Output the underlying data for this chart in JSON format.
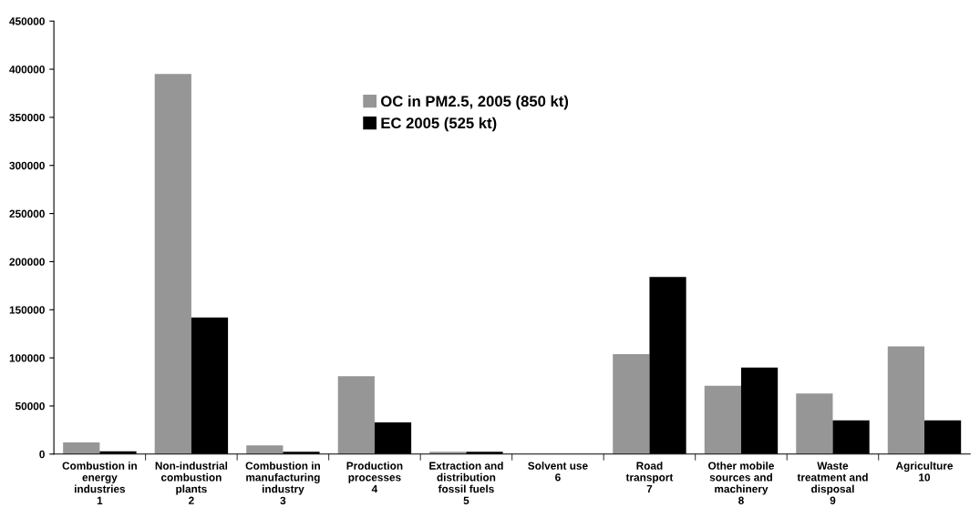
{
  "chart_data": {
    "type": "bar",
    "categories": [
      "Combustion in\nenergy\nindustries\n1",
      "Non-industrial\ncombustion\nplants\n2",
      "Combustion in\nmanufacturing\nindustry\n3",
      "Production\nprocesses\n4",
      "Extraction and\ndistribution\nfossil fuels\n5",
      "Solvent use\n6",
      "Road\ntransport\n7",
      "Other mobile\nsources and\nmachinery\n8",
      "Waste\ntreatment and\ndisposal\n9",
      "Agriculture\n10"
    ],
    "series": [
      {
        "name": "OC in PM2.5, 2005 (850 kt)",
        "color": "#969696",
        "values": [
          12000,
          395000,
          9000,
          81000,
          2500,
          0,
          104000,
          71000,
          63000,
          112000
        ]
      },
      {
        "name": "EC 2005 (525 kt)",
        "color": "#000000",
        "values": [
          3000,
          142000,
          2500,
          33000,
          2500,
          0,
          184000,
          90000,
          35000,
          35000
        ]
      }
    ],
    "ylim": [
      0,
      450000
    ],
    "yticks": [
      0,
      50000,
      100000,
      150000,
      200000,
      250000,
      300000,
      350000,
      400000,
      450000
    ],
    "grid": false,
    "legend": "top"
  }
}
